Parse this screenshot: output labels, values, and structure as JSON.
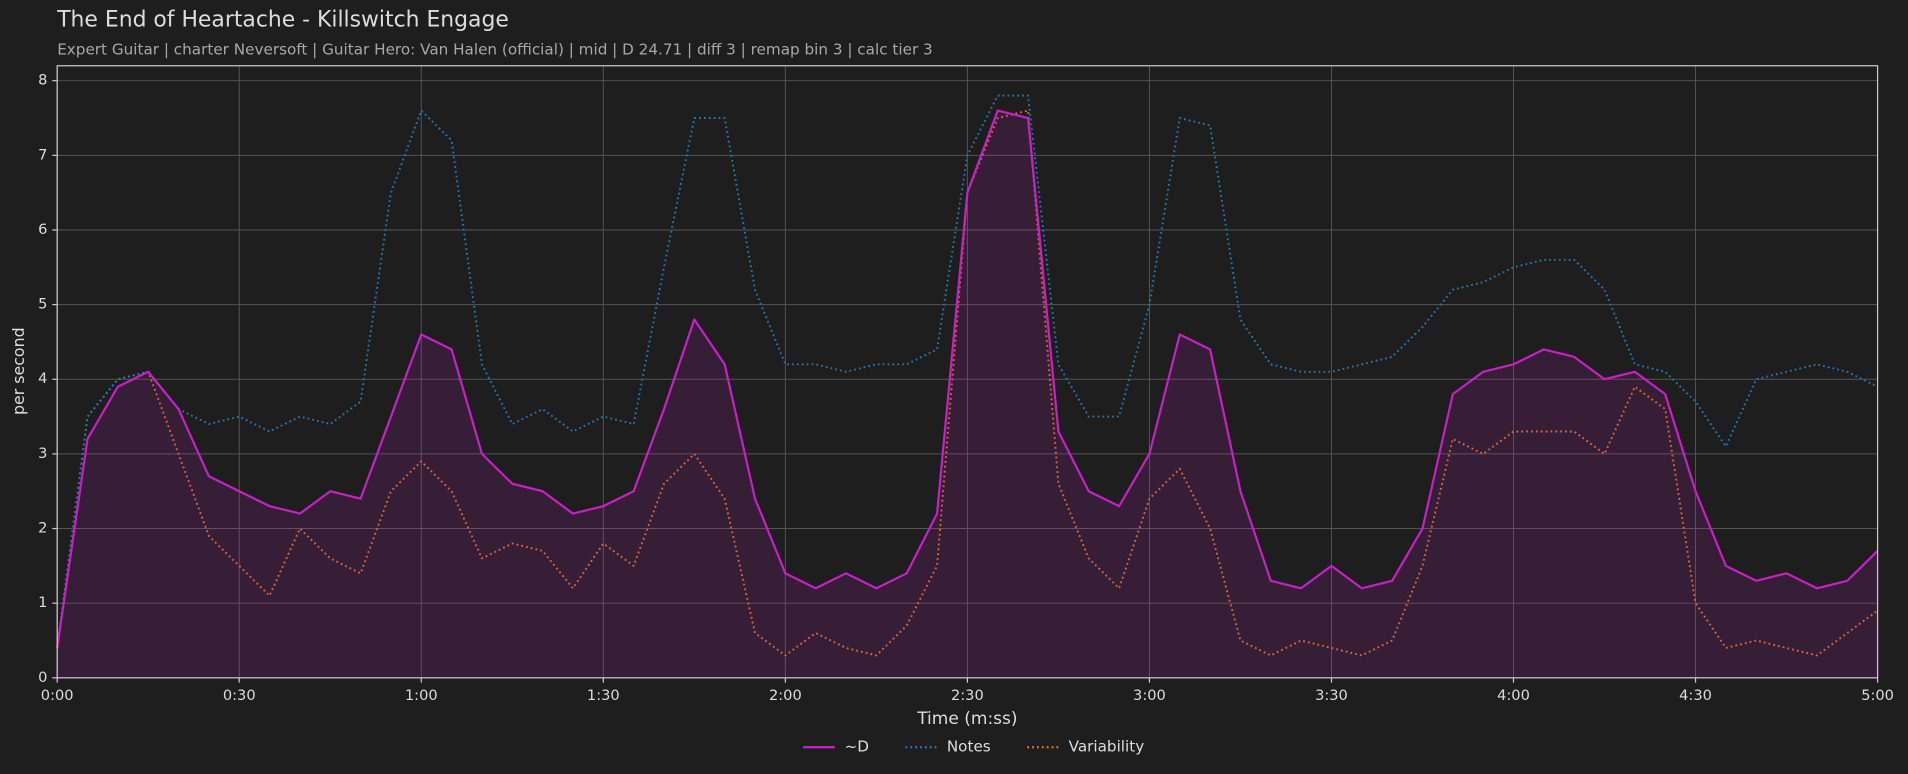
{
  "chart_data": {
    "type": "line",
    "title": "The End of Heartache - Killswitch Engage",
    "subtitle": "Expert Guitar  |  charter Neversoft  |  Guitar Hero: Van Halen (official)  |  mid  |  D 24.71  |  diff 3  |  remap bin 3  |  calc tier 3",
    "xlabel": "Time (m:ss)",
    "ylabel": "per second",
    "x": [
      0,
      5,
      10,
      15,
      20,
      25,
      30,
      35,
      40,
      45,
      50,
      55,
      60,
      65,
      70,
      75,
      80,
      85,
      90,
      95,
      100,
      105,
      110,
      115,
      120,
      125,
      130,
      135,
      140,
      145,
      150,
      155,
      160,
      165,
      170,
      175,
      180,
      185,
      190,
      195,
      200,
      205,
      210,
      215,
      220,
      225,
      230,
      235,
      240,
      245,
      250,
      255,
      260,
      265,
      270,
      275,
      280,
      285,
      290,
      295,
      300
    ],
    "series": [
      {
        "name": "~D",
        "color": "#c81fc8",
        "dash": "solid",
        "area": true,
        "values": [
          0.4,
          3.2,
          3.9,
          4.1,
          3.6,
          2.7,
          2.5,
          2.3,
          2.2,
          2.5,
          2.4,
          3.5,
          4.6,
          4.4,
          3.0,
          2.6,
          2.5,
          2.2,
          2.3,
          2.5,
          3.6,
          4.8,
          4.2,
          2.4,
          1.4,
          1.2,
          1.4,
          1.2,
          1.4,
          2.2,
          6.5,
          7.6,
          7.5,
          3.3,
          2.5,
          2.3,
          3.0,
          4.6,
          4.4,
          2.5,
          1.3,
          1.2,
          1.5,
          1.2,
          1.3,
          2.0,
          3.8,
          4.1,
          4.2,
          4.4,
          4.3,
          4.0,
          4.1,
          3.8,
          2.5,
          1.5,
          1.3,
          1.4,
          1.2,
          1.3,
          1.7
        ]
      },
      {
        "name": "Notes",
        "color": "#1f77b4",
        "dash": "dotted",
        "area": false,
        "values": [
          0.4,
          3.5,
          4.0,
          4.1,
          3.6,
          3.4,
          3.5,
          3.3,
          3.5,
          3.4,
          3.7,
          6.5,
          7.6,
          7.2,
          4.2,
          3.4,
          3.6,
          3.3,
          3.5,
          3.4,
          5.5,
          7.5,
          7.5,
          5.2,
          4.2,
          4.2,
          4.1,
          4.2,
          4.2,
          4.4,
          7.0,
          7.8,
          7.8,
          4.2,
          3.5,
          3.5,
          5.0,
          7.5,
          7.4,
          4.8,
          4.2,
          4.1,
          4.1,
          4.2,
          4.3,
          4.7,
          5.2,
          5.3,
          5.5,
          5.6,
          5.6,
          5.2,
          4.2,
          4.1,
          3.7,
          3.1,
          4.0,
          4.1,
          4.2,
          4.1,
          3.9
        ]
      },
      {
        "name": "Variability",
        "color": "#e0701f",
        "dash": "dotted",
        "area": false,
        "values": [
          0.4,
          3.5,
          4.0,
          4.1,
          3.0,
          1.9,
          1.5,
          1.1,
          2.0,
          1.6,
          1.4,
          2.5,
          2.9,
          2.5,
          1.6,
          1.8,
          1.7,
          1.2,
          1.8,
          1.5,
          2.6,
          3.0,
          2.4,
          0.6,
          0.3,
          0.6,
          0.4,
          0.3,
          0.7,
          1.5,
          6.5,
          7.5,
          7.6,
          2.6,
          1.6,
          1.2,
          2.4,
          2.8,
          2.0,
          0.5,
          0.3,
          0.5,
          0.4,
          0.3,
          0.5,
          1.5,
          3.2,
          3.0,
          3.3,
          3.3,
          3.3,
          3.0,
          3.9,
          3.6,
          1.0,
          0.4,
          0.5,
          0.4,
          0.3,
          0.6,
          0.9
        ]
      }
    ],
    "xlim": [
      0,
      300
    ],
    "ylim": [
      0,
      8.2
    ],
    "xticks": [
      {
        "value": 0,
        "label": "0:00"
      },
      {
        "value": 30,
        "label": "0:30"
      },
      {
        "value": 60,
        "label": "1:00"
      },
      {
        "value": 90,
        "label": "1:30"
      },
      {
        "value": 120,
        "label": "2:00"
      },
      {
        "value": 150,
        "label": "2:30"
      },
      {
        "value": 180,
        "label": "3:00"
      },
      {
        "value": 210,
        "label": "3:30"
      },
      {
        "value": 240,
        "label": "4:00"
      },
      {
        "value": 270,
        "label": "4:30"
      },
      {
        "value": 300,
        "label": "5:00"
      }
    ],
    "yticks": [
      0,
      1,
      2,
      3,
      4,
      5,
      6,
      7,
      8
    ],
    "grid": true,
    "legend": "bottom"
  }
}
